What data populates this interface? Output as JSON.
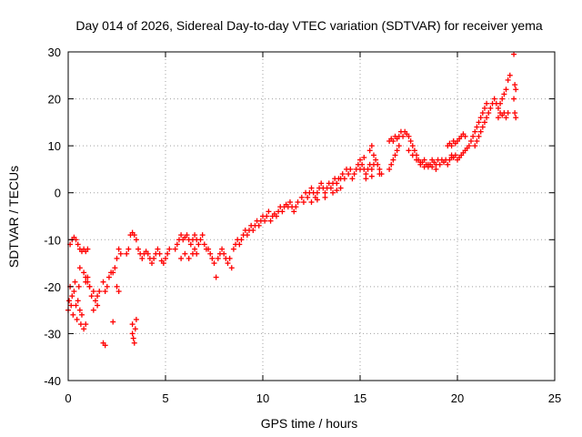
{
  "chart_data": {
    "type": "scatter",
    "title": "Day 014 of 2026, Sidereal Day-to-day VTEC variation (SDTVAR) for receiver yema",
    "xlabel": "GPS time / hours",
    "ylabel": "SDTVAR / TECUs",
    "xlim": [
      0,
      25
    ],
    "ylim": [
      -40,
      30
    ],
    "xticks": [
      "0",
      "5",
      "10",
      "15",
      "20",
      "25"
    ],
    "yticks": [
      "30",
      "20",
      "10",
      "0",
      "-10",
      "-20",
      "-30",
      "-40"
    ],
    "grid": true,
    "marker": "+",
    "color": "#ff0000",
    "series": [
      {
        "name": "SDTVAR",
        "points": [
          [
            0.0,
            -25
          ],
          [
            0.05,
            -23
          ],
          [
            0.1,
            -20
          ],
          [
            0.15,
            -24
          ],
          [
            0.2,
            -22
          ],
          [
            0.25,
            -26
          ],
          [
            0.3,
            -21
          ],
          [
            0.35,
            -19
          ],
          [
            0.4,
            -24
          ],
          [
            0.45,
            -27
          ],
          [
            0.5,
            -23
          ],
          [
            0.55,
            -20
          ],
          [
            0.6,
            -25
          ],
          [
            0.65,
            -28
          ],
          [
            0.7,
            -26
          ],
          [
            0.8,
            -29
          ],
          [
            0.9,
            -28
          ],
          [
            0.1,
            -11
          ],
          [
            0.2,
            -10
          ],
          [
            0.3,
            -9.5
          ],
          [
            0.4,
            -10
          ],
          [
            0.5,
            -11
          ],
          [
            0.6,
            -12
          ],
          [
            0.7,
            -12.5
          ],
          [
            0.8,
            -12
          ],
          [
            0.9,
            -12.5
          ],
          [
            1.0,
            -12
          ],
          [
            0.6,
            -16
          ],
          [
            0.8,
            -17
          ],
          [
            0.9,
            -18
          ],
          [
            1.0,
            -19
          ],
          [
            1.1,
            -20
          ],
          [
            1.2,
            -22
          ],
          [
            1.3,
            -21
          ],
          [
            1.4,
            -23
          ],
          [
            1.5,
            -22
          ],
          [
            1.6,
            -21
          ],
          [
            0.9,
            -19
          ],
          [
            1.0,
            -18
          ],
          [
            1.1,
            -20
          ],
          [
            1.3,
            -25
          ],
          [
            1.5,
            -24
          ],
          [
            1.8,
            -19
          ],
          [
            1.9,
            -21
          ],
          [
            2.0,
            -20
          ],
          [
            2.1,
            -18
          ],
          [
            2.2,
            -17
          ],
          [
            1.8,
            -32
          ],
          [
            1.9,
            -32.5
          ],
          [
            2.3,
            -27.5
          ],
          [
            2.3,
            -17
          ],
          [
            2.4,
            -16
          ],
          [
            2.5,
            -14
          ],
          [
            2.6,
            -12
          ],
          [
            2.7,
            -13
          ],
          [
            2.5,
            -20
          ],
          [
            2.6,
            -21
          ],
          [
            3.0,
            -13
          ],
          [
            3.1,
            -12
          ],
          [
            3.2,
            -9
          ],
          [
            3.3,
            -8.5
          ],
          [
            3.4,
            -9
          ],
          [
            3.5,
            -10
          ],
          [
            3.6,
            -12
          ],
          [
            3.7,
            -13
          ],
          [
            3.8,
            -14
          ],
          [
            3.9,
            -13
          ],
          [
            4.0,
            -12.5
          ],
          [
            4.1,
            -13
          ],
          [
            4.2,
            -14
          ],
          [
            4.3,
            -15
          ],
          [
            4.4,
            -14
          ],
          [
            3.3,
            -28
          ],
          [
            3.3,
            -30
          ],
          [
            3.35,
            -31
          ],
          [
            3.4,
            -32
          ],
          [
            3.45,
            -29
          ],
          [
            3.5,
            -27
          ],
          [
            4.5,
            -13
          ],
          [
            4.6,
            -12
          ],
          [
            4.7,
            -13
          ],
          [
            4.8,
            -14.5
          ],
          [
            4.9,
            -15
          ],
          [
            5.0,
            -14
          ],
          [
            5.1,
            -13
          ],
          [
            5.2,
            -12
          ],
          [
            5.5,
            -12
          ],
          [
            5.6,
            -11
          ],
          [
            5.7,
            -10
          ],
          [
            5.8,
            -9
          ],
          [
            5.9,
            -10
          ],
          [
            6.0,
            -9.5
          ],
          [
            6.1,
            -9
          ],
          [
            6.2,
            -10
          ],
          [
            6.3,
            -11
          ],
          [
            6.4,
            -10
          ],
          [
            6.5,
            -9
          ],
          [
            6.6,
            -10
          ],
          [
            6.7,
            -11
          ],
          [
            6.8,
            -10
          ],
          [
            6.9,
            -9
          ],
          [
            7.0,
            -11
          ],
          [
            7.1,
            -12
          ],
          [
            5.8,
            -14
          ],
          [
            6.0,
            -13
          ],
          [
            6.2,
            -14
          ],
          [
            6.4,
            -13
          ],
          [
            6.5,
            -12
          ],
          [
            6.6,
            -13
          ],
          [
            7.2,
            -12
          ],
          [
            7.3,
            -13
          ],
          [
            7.4,
            -14
          ],
          [
            7.5,
            -15
          ],
          [
            7.6,
            -18
          ],
          [
            7.7,
            -14
          ],
          [
            7.8,
            -13
          ],
          [
            7.9,
            -12
          ],
          [
            8.0,
            -13
          ],
          [
            8.1,
            -14
          ],
          [
            8.2,
            -15
          ],
          [
            8.3,
            -14
          ],
          [
            8.4,
            -16
          ],
          [
            8.5,
            -12
          ],
          [
            8.6,
            -11
          ],
          [
            8.7,
            -10
          ],
          [
            8.8,
            -11
          ],
          [
            8.9,
            -10
          ],
          [
            9.0,
            -9
          ],
          [
            9.1,
            -8
          ],
          [
            9.2,
            -9
          ],
          [
            9.3,
            -8
          ],
          [
            9.4,
            -7
          ],
          [
            9.5,
            -8
          ],
          [
            9.6,
            -7
          ],
          [
            9.7,
            -6
          ],
          [
            9.8,
            -7
          ],
          [
            9.9,
            -6
          ],
          [
            10.0,
            -5
          ],
          [
            10.1,
            -6
          ],
          [
            10.2,
            -5
          ],
          [
            10.3,
            -4
          ],
          [
            10.4,
            -6
          ],
          [
            10.5,
            -5
          ],
          [
            10.6,
            -4.5
          ],
          [
            10.7,
            -5
          ],
          [
            10.8,
            -4
          ],
          [
            10.9,
            -3
          ],
          [
            11.0,
            -4
          ],
          [
            11.1,
            -3
          ],
          [
            11.2,
            -2.5
          ],
          [
            11.3,
            -3
          ],
          [
            11.4,
            -2
          ],
          [
            11.5,
            -3
          ],
          [
            11.6,
            -4
          ],
          [
            11.7,
            -3
          ],
          [
            11.8,
            -2
          ],
          [
            12.0,
            -1
          ],
          [
            12.1,
            -2
          ],
          [
            12.2,
            0
          ],
          [
            12.3,
            -1
          ],
          [
            12.4,
            0
          ],
          [
            12.5,
            1
          ],
          [
            12.6,
            0
          ],
          [
            12.7,
            -1
          ],
          [
            12.8,
            0
          ],
          [
            12.9,
            1
          ],
          [
            13.0,
            2
          ],
          [
            13.1,
            1
          ],
          [
            13.2,
            0
          ],
          [
            13.3,
            1
          ],
          [
            13.4,
            2
          ],
          [
            13.5,
            1
          ],
          [
            13.6,
            2
          ],
          [
            13.7,
            3
          ],
          [
            13.8,
            2
          ],
          [
            13.9,
            3
          ],
          [
            12.5,
            -2
          ],
          [
            12.8,
            -1.5
          ],
          [
            13.2,
            -1
          ],
          [
            13.6,
            0
          ],
          [
            13.8,
            0.5
          ],
          [
            14.0,
            1
          ],
          [
            14.0,
            3
          ],
          [
            14.1,
            4
          ],
          [
            14.2,
            3
          ],
          [
            14.3,
            5
          ],
          [
            14.4,
            4
          ],
          [
            14.5,
            5
          ],
          [
            14.6,
            3
          ],
          [
            14.7,
            4
          ],
          [
            14.8,
            5
          ],
          [
            14.9,
            6
          ],
          [
            15.0,
            5
          ],
          [
            15.1,
            6
          ],
          [
            15.2,
            5
          ],
          [
            15.3,
            4
          ],
          [
            15.4,
            5
          ],
          [
            15.5,
            6
          ],
          [
            15.6,
            5
          ],
          [
            15.7,
            6
          ],
          [
            15.8,
            7
          ],
          [
            15.9,
            6
          ],
          [
            16.0,
            5
          ],
          [
            16.1,
            4
          ],
          [
            15.0,
            7
          ],
          [
            15.2,
            7.5
          ],
          [
            15.5,
            9
          ],
          [
            15.6,
            10
          ],
          [
            15.7,
            8
          ],
          [
            15.3,
            3
          ],
          [
            15.6,
            3.5
          ],
          [
            16.0,
            4
          ],
          [
            16.5,
            11
          ],
          [
            16.6,
            11.5
          ],
          [
            16.7,
            11
          ],
          [
            16.8,
            12
          ],
          [
            16.9,
            11.5
          ],
          [
            17.0,
            12
          ],
          [
            17.1,
            13
          ],
          [
            16.5,
            5
          ],
          [
            16.6,
            6
          ],
          [
            16.7,
            7
          ],
          [
            16.8,
            8
          ],
          [
            16.9,
            9
          ],
          [
            17.0,
            10
          ],
          [
            17.2,
            12
          ],
          [
            17.3,
            13
          ],
          [
            17.4,
            12.5
          ],
          [
            17.5,
            12
          ],
          [
            17.6,
            11
          ],
          [
            17.7,
            10
          ],
          [
            17.8,
            9
          ],
          [
            17.9,
            8
          ],
          [
            18.0,
            7
          ],
          [
            18.1,
            6
          ],
          [
            18.2,
            6.5
          ],
          [
            18.3,
            7
          ],
          [
            18.4,
            6
          ],
          [
            18.5,
            5.5
          ],
          [
            18.6,
            6
          ],
          [
            18.7,
            7
          ],
          [
            18.8,
            6.5
          ],
          [
            18.9,
            6
          ],
          [
            19.0,
            7
          ],
          [
            19.1,
            6
          ],
          [
            19.2,
            7
          ],
          [
            19.3,
            6.5
          ],
          [
            19.4,
            7
          ],
          [
            19.5,
            6
          ],
          [
            19.6,
            7
          ],
          [
            19.7,
            7.5
          ],
          [
            17.5,
            9
          ],
          [
            17.7,
            8
          ],
          [
            17.9,
            7
          ],
          [
            18.1,
            6.5
          ],
          [
            18.3,
            5.5
          ],
          [
            18.5,
            6
          ],
          [
            18.7,
            5.5
          ],
          [
            18.9,
            5
          ],
          [
            19.5,
            10
          ],
          [
            19.6,
            10.5
          ],
          [
            19.7,
            10
          ],
          [
            19.8,
            11
          ],
          [
            19.9,
            10.5
          ],
          [
            20.0,
            11
          ],
          [
            20.1,
            11.5
          ],
          [
            20.2,
            12
          ],
          [
            20.3,
            12.5
          ],
          [
            20.4,
            12
          ],
          [
            19.7,
            8
          ],
          [
            19.8,
            7.5
          ],
          [
            19.9,
            8
          ],
          [
            20.0,
            7
          ],
          [
            20.1,
            7.5
          ],
          [
            20.2,
            8
          ],
          [
            20.3,
            8.5
          ],
          [
            20.4,
            9
          ],
          [
            20.5,
            9.5
          ],
          [
            20.6,
            10
          ],
          [
            20.7,
            11
          ],
          [
            20.8,
            12
          ],
          [
            20.9,
            13
          ],
          [
            21.0,
            14
          ],
          [
            21.1,
            15
          ],
          [
            21.2,
            16
          ],
          [
            21.3,
            17
          ],
          [
            21.4,
            18
          ],
          [
            21.5,
            19
          ],
          [
            20.9,
            10
          ],
          [
            21.0,
            11
          ],
          [
            21.1,
            12
          ],
          [
            21.2,
            13
          ],
          [
            21.3,
            14
          ],
          [
            21.4,
            15
          ],
          [
            21.5,
            16
          ],
          [
            21.6,
            17
          ],
          [
            21.7,
            18
          ],
          [
            21.8,
            19
          ],
          [
            21.9,
            20
          ],
          [
            22.0,
            19
          ],
          [
            22.1,
            18
          ],
          [
            22.2,
            19
          ],
          [
            22.3,
            20
          ],
          [
            22.4,
            21
          ],
          [
            22.5,
            22
          ],
          [
            22.6,
            24
          ],
          [
            22.7,
            25
          ],
          [
            22.1,
            16
          ],
          [
            22.2,
            17
          ],
          [
            22.3,
            16.5
          ],
          [
            22.4,
            17
          ],
          [
            22.5,
            16
          ],
          [
            22.6,
            17
          ],
          [
            22.9,
            29.5
          ],
          [
            22.95,
            23
          ],
          [
            23.0,
            22
          ],
          [
            22.9,
            20
          ],
          [
            22.95,
            17
          ],
          [
            23.0,
            16
          ]
        ]
      }
    ]
  }
}
